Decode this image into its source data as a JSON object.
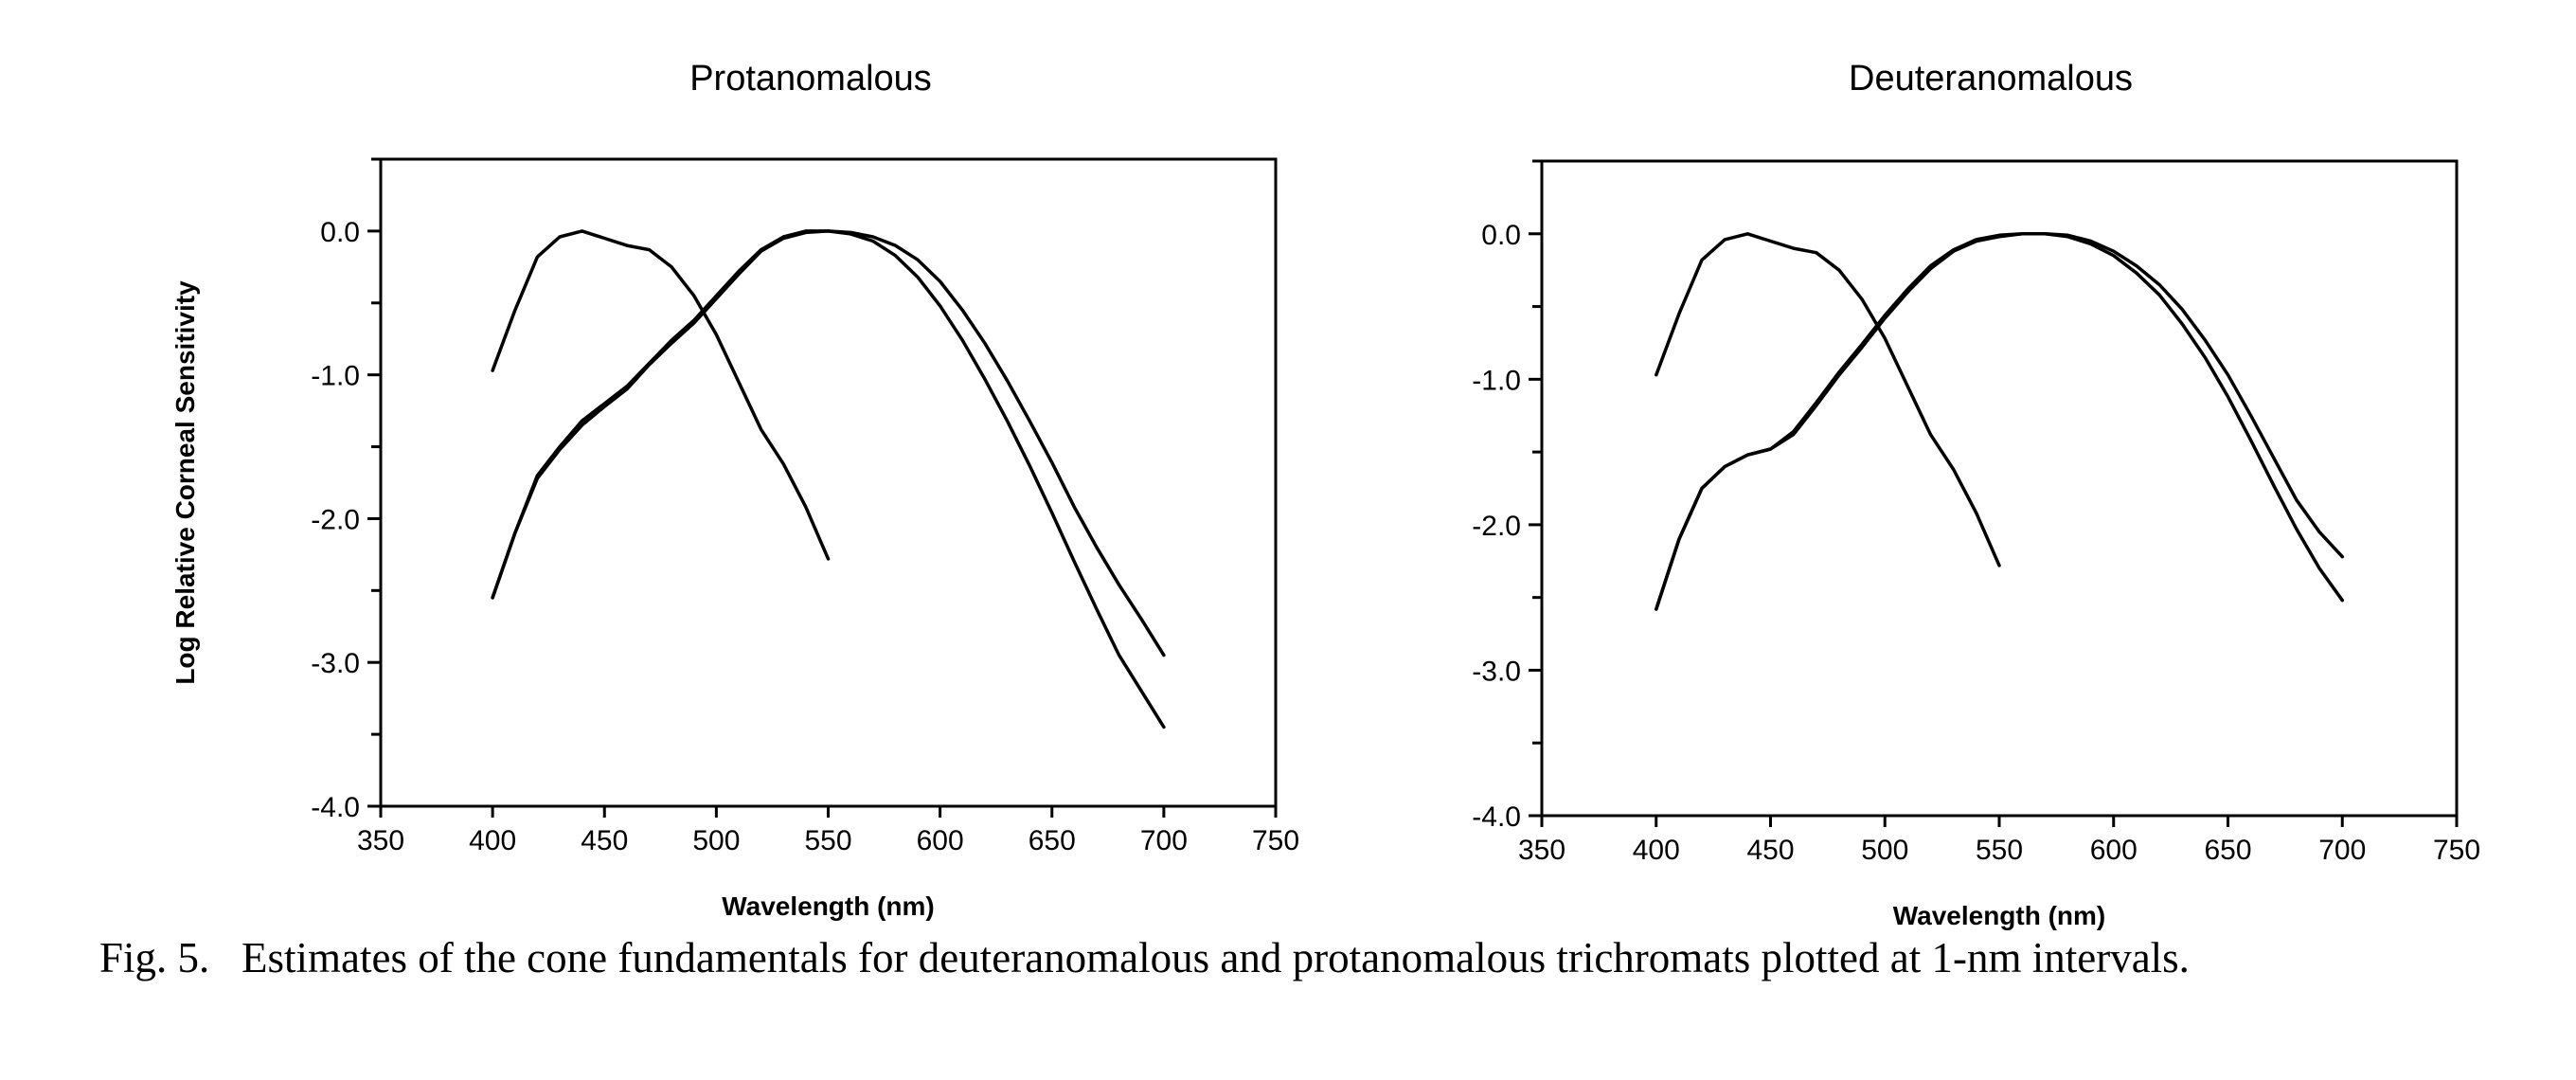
{
  "chart_data": [
    {
      "type": "line",
      "title": "Protanomalous",
      "xlabel": "Wavelength  (nm)",
      "ylabel": "Log  Relative  Corneal  Sensitivity",
      "xlim": [
        350,
        750
      ],
      "ylim": [
        -4.0,
        0.5
      ],
      "xticks": [
        350,
        400,
        450,
        500,
        550,
        600,
        650,
        700,
        750
      ],
      "xtick_labels": [
        "350",
        "400",
        "450",
        "500",
        "550",
        "600",
        "650",
        "700",
        "750"
      ],
      "yticks": [
        0.0,
        -1.0,
        -2.0,
        -3.0,
        -4.0
      ],
      "ytick_labels": [
        "0.0",
        "-1.0",
        "-2.0",
        "-3.0",
        "-4.0"
      ],
      "grid": false,
      "series": [
        {
          "x": [
            400,
            410,
            420,
            430,
            440,
            450,
            460,
            470,
            480,
            490,
            500,
            510,
            520,
            530,
            540,
            550
          ],
          "y": [
            -0.97,
            -0.55,
            -0.18,
            -0.04,
            0.0,
            -0.05,
            -0.1,
            -0.13,
            -0.25,
            -0.45,
            -0.72,
            -1.05,
            -1.38,
            -1.62,
            -1.92,
            -2.28
          ]
        },
        {
          "x": [
            400,
            410,
            420,
            430,
            440,
            450,
            460,
            470,
            480,
            490,
            500,
            510,
            520,
            530,
            540,
            550,
            560,
            570,
            580,
            590,
            600,
            610,
            620,
            630,
            640,
            650,
            660,
            670,
            680,
            690,
            700
          ],
          "y": [
            -2.55,
            -2.1,
            -1.72,
            -1.52,
            -1.35,
            -1.22,
            -1.1,
            -0.93,
            -0.78,
            -0.64,
            -0.47,
            -0.3,
            -0.14,
            -0.05,
            -0.01,
            0.0,
            -0.02,
            -0.07,
            -0.17,
            -0.32,
            -0.52,
            -0.76,
            -1.03,
            -1.32,
            -1.63,
            -1.96,
            -2.3,
            -2.63,
            -2.95,
            -3.2,
            -3.45
          ]
        },
        {
          "x": [
            400,
            410,
            420,
            430,
            440,
            450,
            460,
            470,
            480,
            490,
            500,
            510,
            520,
            530,
            540,
            550,
            560,
            570,
            580,
            590,
            600,
            610,
            620,
            630,
            640,
            650,
            660,
            670,
            680,
            690,
            700
          ],
          "y": [
            -2.55,
            -2.1,
            -1.7,
            -1.5,
            -1.32,
            -1.2,
            -1.08,
            -0.92,
            -0.76,
            -0.62,
            -0.45,
            -0.28,
            -0.13,
            -0.04,
            0.0,
            0.0,
            -0.01,
            -0.04,
            -0.1,
            -0.2,
            -0.35,
            -0.55,
            -0.78,
            -1.04,
            -1.32,
            -1.61,
            -1.92,
            -2.2,
            -2.46,
            -2.7,
            -2.95
          ]
        }
      ]
    },
    {
      "type": "line",
      "title": "Deuteranomalous",
      "xlabel": "Wavelength  (nm)",
      "ylabel": "",
      "xlim": [
        350,
        750
      ],
      "ylim": [
        -4.0,
        0.5
      ],
      "xticks": [
        350,
        400,
        450,
        500,
        550,
        600,
        650,
        700,
        750
      ],
      "xtick_labels": [
        "350",
        "400",
        "450",
        "500",
        "550",
        "600",
        "650",
        "700",
        "750"
      ],
      "yticks": [
        0.0,
        -1.0,
        -2.0,
        -3.0,
        -4.0
      ],
      "ytick_labels": [
        "0.0",
        "-1.0",
        "-2.0",
        "-3.0",
        "-4.0"
      ],
      "grid": false,
      "series": [
        {
          "x": [
            400,
            410,
            420,
            430,
            440,
            450,
            460,
            470,
            480,
            490,
            500,
            510,
            520,
            530,
            540,
            550
          ],
          "y": [
            -0.97,
            -0.55,
            -0.18,
            -0.04,
            0.0,
            -0.05,
            -0.1,
            -0.13,
            -0.25,
            -0.45,
            -0.72,
            -1.05,
            -1.38,
            -1.62,
            -1.92,
            -2.28
          ]
        },
        {
          "x": [
            400,
            410,
            420,
            430,
            440,
            450,
            460,
            470,
            480,
            490,
            500,
            510,
            520,
            530,
            540,
            550,
            560,
            570,
            580,
            590,
            600,
            610,
            620,
            630,
            640,
            650,
            660,
            670,
            680,
            690,
            700
          ],
          "y": [
            -2.58,
            -2.1,
            -1.75,
            -1.6,
            -1.52,
            -1.48,
            -1.38,
            -1.18,
            -0.97,
            -0.78,
            -0.58,
            -0.4,
            -0.24,
            -0.12,
            -0.05,
            -0.02,
            0.0,
            0.0,
            -0.02,
            -0.07,
            -0.15,
            -0.27,
            -0.42,
            -0.62,
            -0.85,
            -1.12,
            -1.42,
            -1.73,
            -2.03,
            -2.3,
            -2.52
          ]
        },
        {
          "x": [
            400,
            410,
            420,
            430,
            440,
            450,
            460,
            470,
            480,
            490,
            500,
            510,
            520,
            530,
            540,
            550,
            560,
            570,
            580,
            590,
            600,
            610,
            620,
            630,
            640,
            650,
            660,
            670,
            680,
            690,
            700
          ],
          "y": [
            -2.58,
            -2.1,
            -1.75,
            -1.6,
            -1.52,
            -1.48,
            -1.36,
            -1.16,
            -0.95,
            -0.76,
            -0.56,
            -0.38,
            -0.22,
            -0.11,
            -0.04,
            -0.01,
            0.0,
            0.0,
            -0.01,
            -0.05,
            -0.12,
            -0.22,
            -0.35,
            -0.52,
            -0.73,
            -0.97,
            -1.25,
            -1.54,
            -1.83,
            -2.05,
            -2.22
          ]
        }
      ]
    }
  ],
  "caption": {
    "label": "Fig. 5.",
    "text": "Estimates of the cone fundamentals for deuteranomalous and protanomalous trichromats plotted at 1-nm intervals."
  }
}
